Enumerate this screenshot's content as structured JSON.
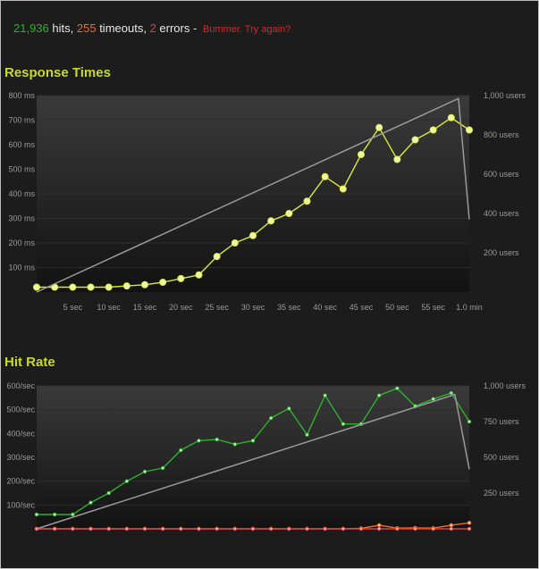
{
  "summary": {
    "hits": "21,936",
    "hits_label": "hits,",
    "timeouts": "255",
    "timeouts_label": "timeouts,",
    "errors": "2",
    "errors_label": "errors -",
    "message": "Bummer. Try again?"
  },
  "colors": {
    "hits": "#2fb02f",
    "timeouts": "#f06a28",
    "errors": "#e83a3a",
    "title": "#c9d82a",
    "response_line": "#d8e83a",
    "users_line": "#9a9a9a"
  },
  "chart_data": [
    {
      "type": "line",
      "title": "Response Times",
      "x_unit": "sec",
      "xlim": [
        0,
        60
      ],
      "ylim": [
        0,
        800
      ],
      "y2lim": [
        0,
        1000
      ],
      "y_ticks": [
        "100 ms",
        "200 ms",
        "300 ms",
        "400 ms",
        "500 ms",
        "600 ms",
        "700 ms",
        "800 ms"
      ],
      "y2_ticks": [
        "200 users",
        "400 users",
        "600 users",
        "800 users",
        "1,000 users"
      ],
      "x_ticks": [
        "5 sec",
        "10 sec",
        "15 sec",
        "20 sec",
        "25 sec",
        "30 sec",
        "35 sec",
        "40 sec",
        "45 sec",
        "50 sec",
        "55 sec",
        "1.0 min"
      ],
      "grid": true,
      "series": [
        {
          "axis": "left",
          "x": [
            0,
            2.5,
            5,
            7.5,
            10,
            12.5,
            15,
            17.5,
            20,
            22.5,
            25,
            27.5,
            30,
            32.5,
            35,
            37.5,
            40,
            42.5,
            45,
            47.5,
            50,
            52.5,
            55,
            57.5,
            60
          ],
          "values": [
            20,
            20,
            20,
            20,
            20,
            25,
            30,
            40,
            55,
            70,
            145,
            200,
            230,
            290,
            320,
            370,
            470,
            420,
            560,
            670,
            540,
            620,
            660,
            710,
            660
          ]
        },
        {
          "axis": "right",
          "x": [
            0,
            58.5,
            60
          ],
          "values": [
            0,
            985,
            370
          ]
        }
      ]
    },
    {
      "type": "line",
      "title": "Hit Rate",
      "x_unit": "sec",
      "xlim": [
        0,
        60
      ],
      "ylim": [
        0,
        600
      ],
      "y2lim": [
        0,
        1250
      ],
      "y_ticks": [
        "100/sec",
        "200/sec",
        "300/sec",
        "400/sec",
        "500/sec",
        "600/sec"
      ],
      "y2_ticks": [
        "250 users",
        "500 users",
        "750 users",
        "1,000 users"
      ],
      "grid": true,
      "series": [
        {
          "axis": "left",
          "x": [
            0,
            2.5,
            5,
            7.5,
            10,
            12.5,
            15,
            17.5,
            20,
            22.5,
            25,
            27.5,
            30,
            32.5,
            35,
            37.5,
            40,
            42.5,
            45,
            47.5,
            50,
            52.5,
            55,
            57.5,
            60
          ],
          "values": [
            60,
            60,
            60,
            110,
            150,
            200,
            240,
            255,
            330,
            370,
            375,
            355,
            370,
            465,
            505,
            395,
            560,
            440,
            440,
            560,
            590,
            515,
            545,
            570,
            450
          ]
        },
        {
          "axis": "left",
          "x": [
            0,
            2.5,
            5,
            7.5,
            10,
            12.5,
            15,
            17.5,
            20,
            22.5,
            25,
            27.5,
            30,
            32.5,
            35,
            37.5,
            40,
            42.5,
            45,
            47.5,
            50,
            52.5,
            55,
            57.5,
            60
          ],
          "values": [
            0,
            0,
            0,
            0,
            0,
            0,
            0,
            0,
            0,
            0,
            0,
            0,
            0,
            0,
            0,
            0,
            0,
            0,
            2,
            15,
            3,
            4,
            3,
            15,
            25
          ]
        },
        {
          "axis": "left",
          "x": [
            0,
            2.5,
            5,
            7.5,
            10,
            12.5,
            15,
            17.5,
            20,
            22.5,
            25,
            27.5,
            30,
            32.5,
            35,
            37.5,
            40,
            42.5,
            45,
            47.5,
            50,
            52.5,
            55,
            57.5,
            60
          ],
          "values": [
            0,
            0,
            0,
            0,
            0,
            0,
            0,
            0,
            0,
            0,
            0,
            0,
            0,
            0,
            0,
            0,
            0,
            0,
            0,
            0,
            0,
            0,
            0,
            0,
            0
          ]
        },
        {
          "axis": "right",
          "x": [
            0,
            58,
            60
          ],
          "values": [
            0,
            1175,
            520
          ]
        }
      ]
    }
  ]
}
